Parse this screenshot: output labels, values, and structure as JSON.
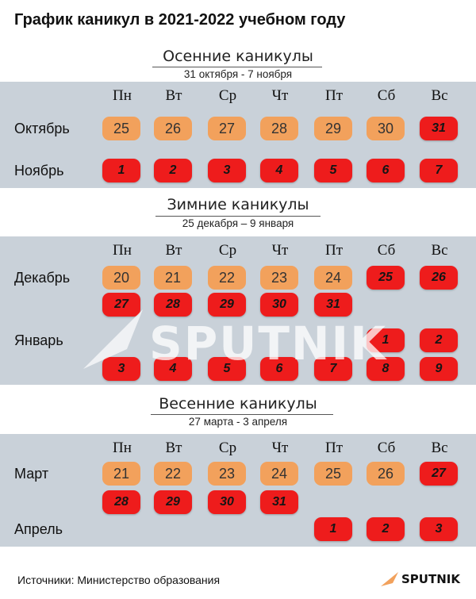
{
  "title": "График каникул в 2021-2022 учебном году",
  "day_names": [
    "Пн",
    "Вт",
    "Ср",
    "Чт",
    "Пт",
    "Сб",
    "Вс"
  ],
  "sections": [
    {
      "title": "Осенние каникулы",
      "subtitle": "31 октября - 7 ноября",
      "rows": [
        {
          "month": "Октябрь",
          "cells": [
            {
              "col": 0,
              "v": "25",
              "t": "w"
            },
            {
              "col": 1,
              "v": "26",
              "t": "w"
            },
            {
              "col": 2,
              "v": "27",
              "t": "w"
            },
            {
              "col": 3,
              "v": "28",
              "t": "w"
            },
            {
              "col": 4,
              "v": "29",
              "t": "w"
            },
            {
              "col": 5,
              "v": "30",
              "t": "w"
            },
            {
              "col": 6,
              "v": "31",
              "t": "h"
            }
          ]
        },
        {
          "month": "Ноябрь",
          "cells": [
            {
              "col": 0,
              "v": "1",
              "t": "h"
            },
            {
              "col": 1,
              "v": "2",
              "t": "h"
            },
            {
              "col": 2,
              "v": "3",
              "t": "h"
            },
            {
              "col": 3,
              "v": "4",
              "t": "h"
            },
            {
              "col": 4,
              "v": "5",
              "t": "h"
            },
            {
              "col": 5,
              "v": "6",
              "t": "h"
            },
            {
              "col": 6,
              "v": "7",
              "t": "h"
            }
          ]
        }
      ]
    },
    {
      "title": "Зимние каникулы",
      "subtitle": "25 декабря – 9 января",
      "rows": [
        {
          "month": "Декабрь",
          "cells": [
            {
              "col": 0,
              "v": "20",
              "t": "w"
            },
            {
              "col": 1,
              "v": "21",
              "t": "w"
            },
            {
              "col": 2,
              "v": "22",
              "t": "w"
            },
            {
              "col": 3,
              "v": "23",
              "t": "w"
            },
            {
              "col": 4,
              "v": "24",
              "t": "w"
            },
            {
              "col": 5,
              "v": "25",
              "t": "h"
            },
            {
              "col": 6,
              "v": "26",
              "t": "h"
            }
          ]
        },
        {
          "month": "",
          "cells": [
            {
              "col": 0,
              "v": "27",
              "t": "h"
            },
            {
              "col": 1,
              "v": "28",
              "t": "h"
            },
            {
              "col": 2,
              "v": "29",
              "t": "h"
            },
            {
              "col": 3,
              "v": "30",
              "t": "h"
            },
            {
              "col": 4,
              "v": "31",
              "t": "h"
            }
          ]
        },
        {
          "month": "Январь",
          "cells": [
            {
              "col": 5,
              "v": "1",
              "t": "h"
            },
            {
              "col": 6,
              "v": "2",
              "t": "h"
            }
          ]
        },
        {
          "month": "",
          "cells": [
            {
              "col": 0,
              "v": "3",
              "t": "h"
            },
            {
              "col": 1,
              "v": "4",
              "t": "h"
            },
            {
              "col": 2,
              "v": "5",
              "t": "h"
            },
            {
              "col": 3,
              "v": "6",
              "t": "h"
            },
            {
              "col": 4,
              "v": "7",
              "t": "h"
            },
            {
              "col": 5,
              "v": "8",
              "t": "h"
            },
            {
              "col": 6,
              "v": "9",
              "t": "h"
            }
          ]
        }
      ]
    },
    {
      "title": "Весенние каникулы",
      "subtitle": "27 марта - 3 апреля",
      "rows": [
        {
          "month": "Март",
          "cells": [
            {
              "col": 0,
              "v": "21",
              "t": "w"
            },
            {
              "col": 1,
              "v": "22",
              "t": "w"
            },
            {
              "col": 2,
              "v": "23",
              "t": "w"
            },
            {
              "col": 3,
              "v": "24",
              "t": "w"
            },
            {
              "col": 4,
              "v": "25",
              "t": "w"
            },
            {
              "col": 5,
              "v": "26",
              "t": "w"
            },
            {
              "col": 6,
              "v": "27",
              "t": "h"
            }
          ]
        },
        {
          "month": "",
          "cells": [
            {
              "col": 0,
              "v": "28",
              "t": "h"
            },
            {
              "col": 1,
              "v": "29",
              "t": "h"
            },
            {
              "col": 2,
              "v": "30",
              "t": "h"
            },
            {
              "col": 3,
              "v": "31",
              "t": "h"
            }
          ]
        },
        {
          "month": "Апрель",
          "cells": [
            {
              "col": 4,
              "v": "1",
              "t": "h"
            },
            {
              "col": 5,
              "v": "2",
              "t": "h"
            },
            {
              "col": 6,
              "v": "3",
              "t": "h"
            }
          ]
        }
      ]
    }
  ],
  "source": "Источники: Министерство образования",
  "watermark": "SPUTNIK",
  "logo": "SPUTNIK",
  "colors": {
    "weekday": "#f2a15c",
    "holiday": "#ee1c1c",
    "panel": "#c9d1d9"
  }
}
